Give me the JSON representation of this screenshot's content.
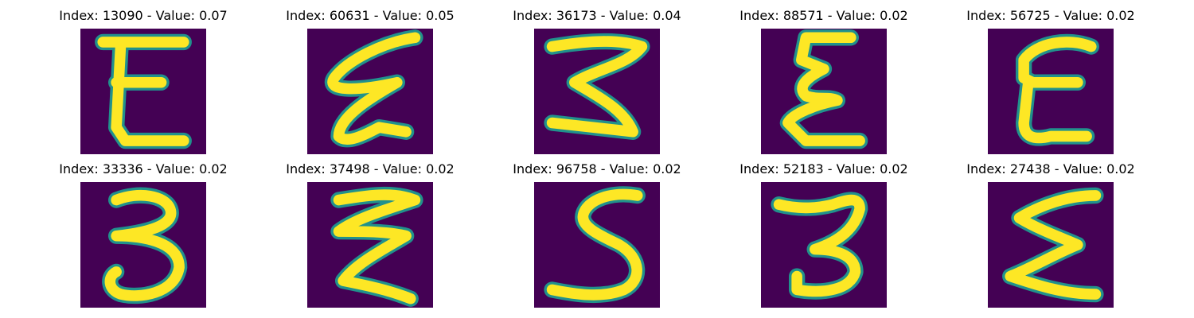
{
  "figure": {
    "background": "#440154",
    "stroke_color": "#fde725",
    "edge_color": "#21918c",
    "colormap": "viridis",
    "panels": [
      {
        "title": "Index: 13090 - Value: 0.07"
      },
      {
        "title": "Index: 60631 - Value: 0.05"
      },
      {
        "title": "Index: 36173 - Value: 0.04"
      },
      {
        "title": "Index: 88571 - Value: 0.02"
      },
      {
        "title": "Index: 56725 - Value: 0.02"
      },
      {
        "title": "Index: 33336 - Value: 0.02"
      },
      {
        "title": "Index: 37498 - Value: 0.02"
      },
      {
        "title": "Index: 96758 - Value: 0.02"
      },
      {
        "title": "Index: 52183 - Value: 0.02"
      },
      {
        "title": "Index: 27438 - Value: 0.02"
      }
    ]
  }
}
